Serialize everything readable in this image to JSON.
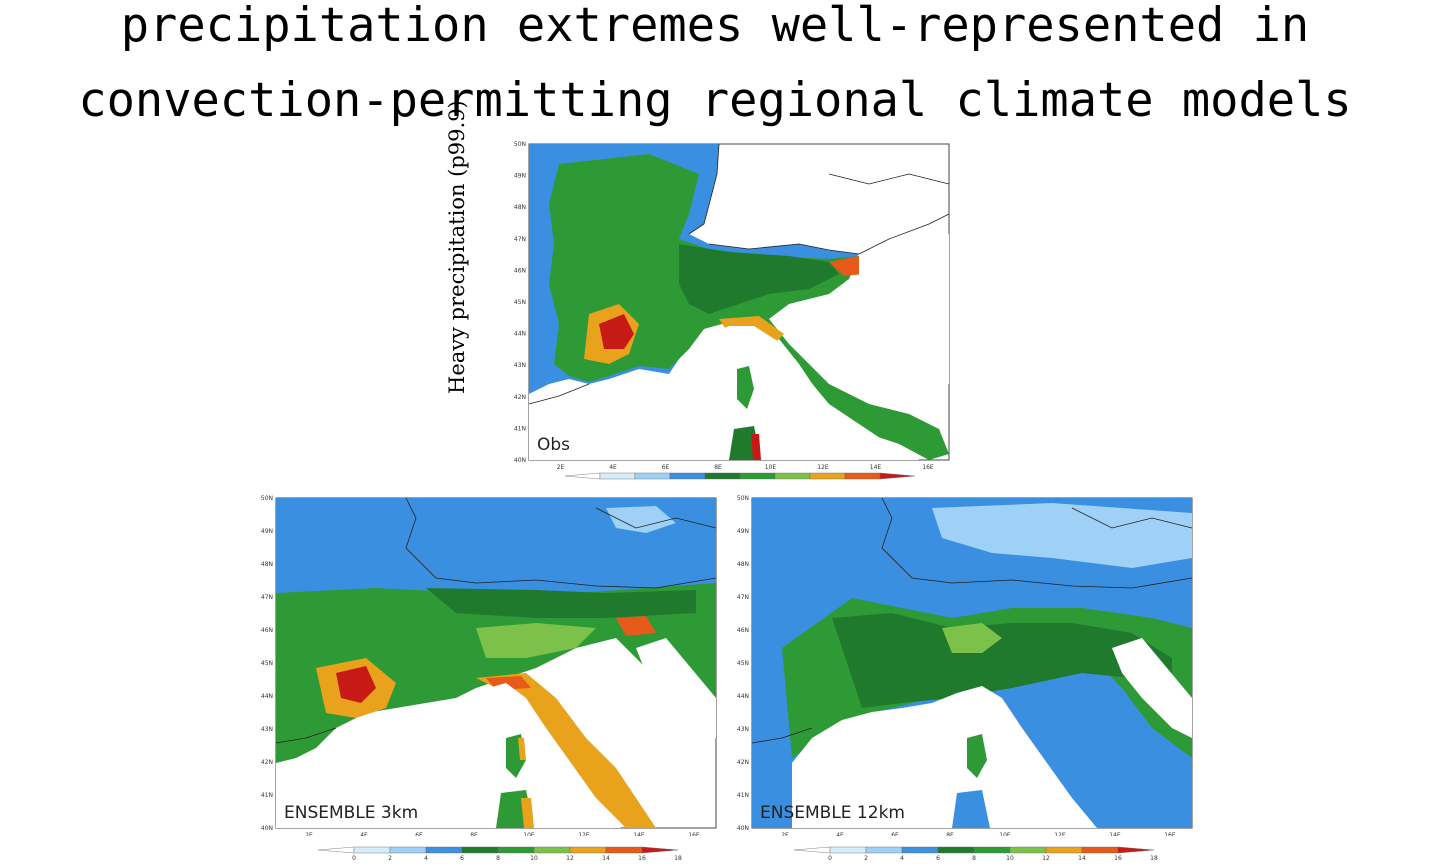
{
  "title": {
    "line1": "precipitation extremes well-represented in",
    "line2": "convection-permitting regional climate models"
  },
  "y_axis_label": "Heavy precipitation (p99.9)",
  "panels": [
    {
      "label": "Obs",
      "lat_ticks": [
        "50N",
        "49N",
        "48N",
        "47N",
        "46N",
        "45N",
        "44N",
        "43N",
        "42N",
        "41N",
        "40N"
      ],
      "lon_ticks": [
        "2E",
        "4E",
        "6E",
        "8E",
        "10E",
        "12E",
        "14E",
        "16E"
      ]
    },
    {
      "label": "ENSEMBLE 3km",
      "lat_ticks": [
        "50N",
        "49N",
        "48N",
        "47N",
        "46N",
        "45N",
        "44N",
        "43N",
        "42N",
        "41N",
        "40N"
      ],
      "lon_ticks": [
        "2E",
        "4E",
        "6E",
        "8E",
        "10E",
        "12E",
        "14E",
        "16E"
      ]
    },
    {
      "label": "ENSEMBLE 12km",
      "lat_ticks": [
        "50N",
        "49N",
        "48N",
        "47N",
        "46N",
        "45N",
        "44N",
        "43N",
        "42N",
        "41N",
        "40N"
      ],
      "lon_ticks": [
        "2E",
        "4E",
        "6E",
        "8E",
        "10E",
        "12E",
        "14E",
        "16E"
      ]
    }
  ],
  "colorbar": {
    "ticks": [
      "0",
      "2",
      "4",
      "6",
      "8",
      "10",
      "12",
      "14",
      "16",
      "18"
    ],
    "colors": [
      "#ffffff",
      "#d6ecfa",
      "#9fd0f5",
      "#3f8fe0",
      "#1f7a2e",
      "#2e9a36",
      "#7cc24a",
      "#e8a21c",
      "#e85a1a",
      "#c81a14"
    ]
  },
  "colors": {
    "sea": "#ffffff",
    "blue": "#3b8fe0",
    "light_blue": "#9fd0f5",
    "dark_green": "#1f7a2e",
    "green": "#2e9a36",
    "light_green": "#7cc24a",
    "orange": "#e8a21c",
    "red": "#e85a1a",
    "dark_red": "#a8140f"
  }
}
